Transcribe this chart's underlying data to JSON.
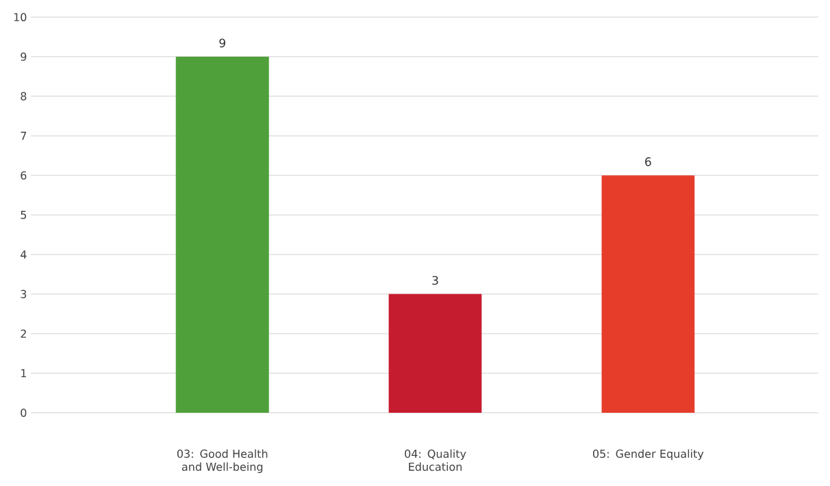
{
  "chart_data": {
    "type": "bar",
    "categories": [
      "03: Good Health and Well-being",
      "04: Quality Education",
      "05: Gender Equality"
    ],
    "values": [
      9,
      3,
      6
    ],
    "colors": [
      "#4fa03a",
      "#c61c2f",
      "#e63d2b"
    ],
    "ylim": [
      0,
      10
    ],
    "yticks": [
      0,
      1,
      2,
      3,
      4,
      5,
      6,
      7,
      8,
      9,
      10
    ],
    "grid": "y",
    "data_labels": true
  }
}
